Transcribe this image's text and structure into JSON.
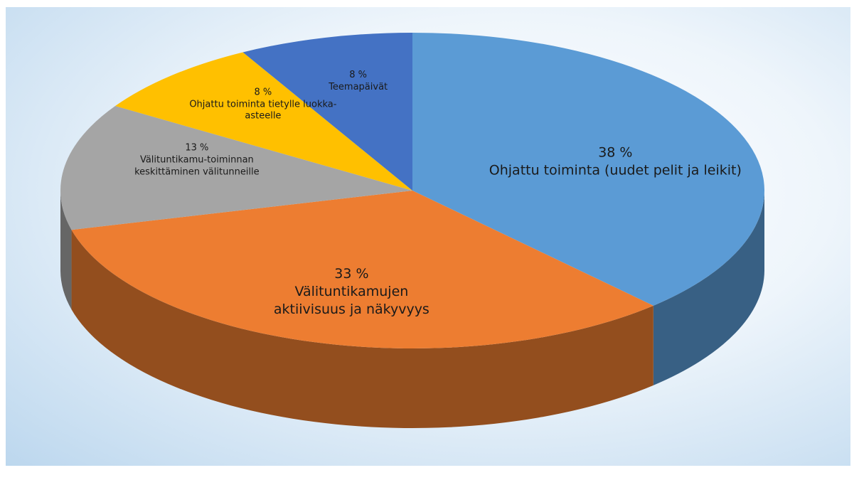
{
  "chart_data": {
    "type": "pie",
    "categories": [
      "Ohjattu toiminta (uudet pelit ja leikit)",
      "Välituntikamujen aktiivisuus ja näkyvyys",
      "Välituntikamu-toiminnan keskittäminen välitunneille",
      "Ohjattu toiminta tietylle luokka-asteelle",
      "Teemapäivät"
    ],
    "values": [
      38,
      33,
      13,
      8,
      8
    ],
    "value_labels": [
      "38 %",
      "33 %",
      "13 %",
      "8 %",
      "8 %"
    ],
    "colors": [
      "#5b9bd5",
      "#ed7d31",
      "#a5a5a5",
      "#ffc000",
      "#4472c4"
    ]
  }
}
